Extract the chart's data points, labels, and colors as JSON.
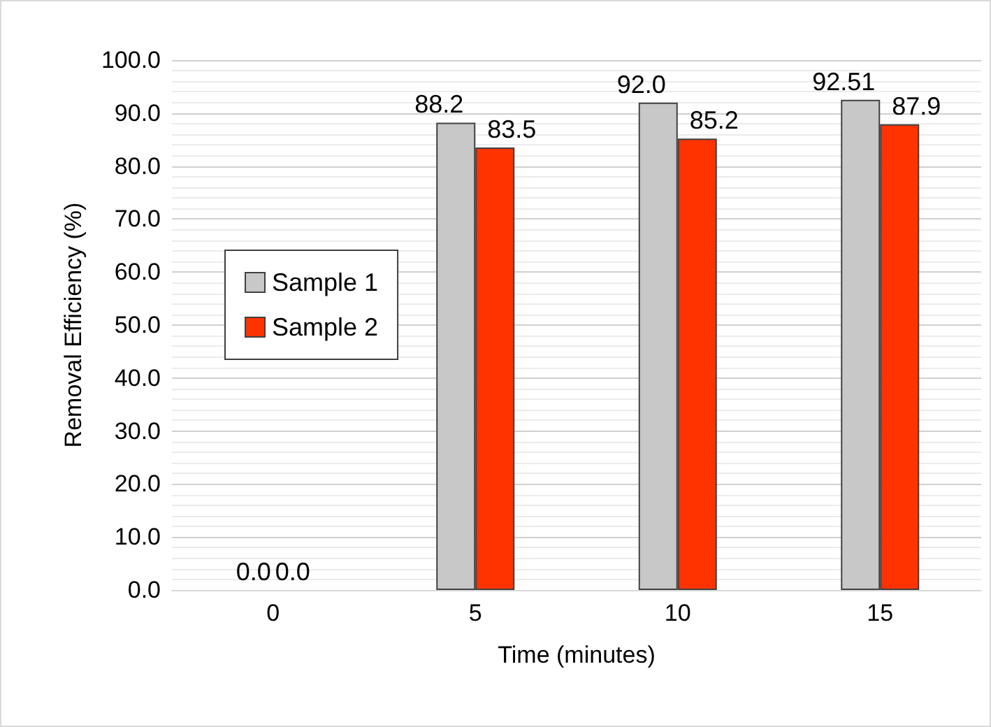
{
  "chart_data": {
    "type": "bar",
    "categories": [
      "0",
      "5",
      "10",
      "15"
    ],
    "series": [
      {
        "name": "Sample 1",
        "color": "#c8c8c8",
        "values": [
          0.0,
          88.2,
          92.0,
          92.51
        ],
        "value_labels": [
          "0.0",
          "88.2",
          "92.0",
          "92.51"
        ]
      },
      {
        "name": "Sample 2",
        "color": "#ff3300",
        "values": [
          0.0,
          83.5,
          85.2,
          87.9
        ],
        "value_labels": [
          "0.0",
          "83.5",
          "85.2",
          "87.9"
        ]
      }
    ],
    "xlabel": "Time (minutes)",
    "ylabel": "Removal Efficiency (%)",
    "ylim": [
      0,
      100
    ],
    "yticks": [
      {
        "value": 0,
        "label": "0.0"
      },
      {
        "value": 10,
        "label": "10.0"
      },
      {
        "value": 20,
        "label": "20.0"
      },
      {
        "value": 30,
        "label": "30.0"
      },
      {
        "value": 40,
        "label": "40.0"
      },
      {
        "value": 50,
        "label": "50.0"
      },
      {
        "value": 60,
        "label": "60.0"
      },
      {
        "value": 70,
        "label": "70.0"
      },
      {
        "value": 80,
        "label": "80.0"
      },
      {
        "value": 90,
        "label": "90.0"
      },
      {
        "value": 100,
        "label": "100.0"
      }
    ],
    "grid": "y",
    "legend": "left"
  }
}
